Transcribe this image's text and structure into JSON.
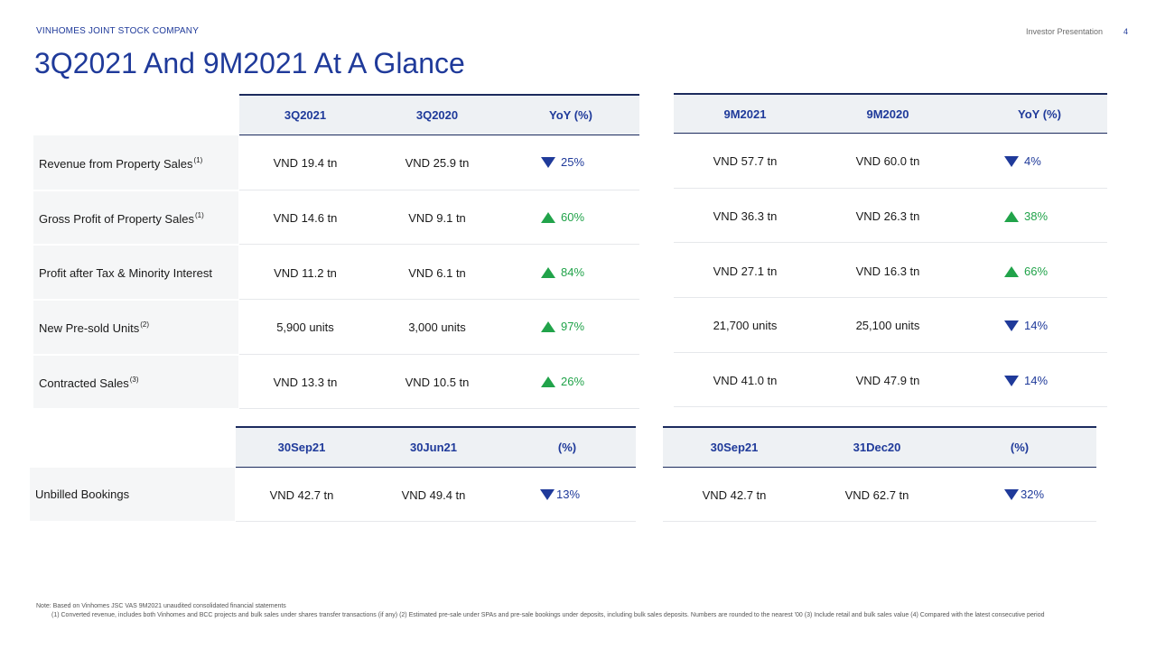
{
  "header": {
    "company": "VINHOMES JOINT STOCK COMPANY",
    "presentation": "Investor Presentation",
    "page_number": "4",
    "title": "3Q2021 And 9M2021 At A Glance"
  },
  "table_quarter": {
    "columns": [
      "3Q2021",
      "3Q2020",
      "YoY (%)"
    ],
    "rows": [
      {
        "label": "Revenue from Property Sales",
        "sup": "(1)",
        "current": "VND 19.4 tn",
        "prior": "VND 25.9 tn",
        "yoy": "25%",
        "direction": "down"
      },
      {
        "label": "Gross Profit of Property Sales",
        "sup": "(1)",
        "current": "VND 14.6 tn",
        "prior": "VND 9.1 tn",
        "yoy": "60%",
        "direction": "up"
      },
      {
        "label": "Profit after Tax & Minority Interest",
        "sup": "",
        "current": "VND 11.2 tn",
        "prior": "VND 6.1 tn",
        "yoy": "84%",
        "direction": "up"
      },
      {
        "label": "New Pre-sold Units",
        "sup": "(2)",
        "current": "5,900 units",
        "prior": "3,000 units",
        "yoy": "97%",
        "direction": "up"
      },
      {
        "label": "Contracted Sales",
        "sup": "(3)",
        "current": "VND 13.3 tn",
        "prior": "VND 10.5 tn",
        "yoy": "26%",
        "direction": "up"
      }
    ]
  },
  "table_9m": {
    "columns": [
      "9M2021",
      "9M2020",
      "YoY (%)"
    ],
    "rows": [
      {
        "current": "VND 57.7 tn",
        "prior": "VND 60.0 tn",
        "yoy": "4%",
        "direction": "down"
      },
      {
        "current": "VND 36.3 tn",
        "prior": "VND 26.3 tn",
        "yoy": "38%",
        "direction": "up"
      },
      {
        "current": "VND 27.1 tn",
        "prior": "VND 16.3 tn",
        "yoy": "66%",
        "direction": "up"
      },
      {
        "current": "21,700 units",
        "prior": "25,100 units",
        "yoy": "14%",
        "direction": "down"
      },
      {
        "current": "VND 41.0 tn",
        "prior": "VND 47.9 tn",
        "yoy": "14%",
        "direction": "down"
      }
    ]
  },
  "bookings_left": {
    "columns": [
      "30Sep21",
      "30Jun21",
      "(%)"
    ],
    "label": "Unbilled Bookings",
    "current": "VND 42.7 tn",
    "prior": "VND 49.4 tn",
    "change": "13%",
    "direction": "down"
  },
  "bookings_right": {
    "columns": [
      "30Sep21",
      "31Dec20",
      "(%)"
    ],
    "current": "VND 42.7 tn",
    "prior": "VND 62.7 tn",
    "change": "32%",
    "direction": "down"
  },
  "notes": {
    "line1": "Note: Based on Vinhomes JSC VAS 9M2021 unaudited consolidated financial statements",
    "line2": "(1) Converted revenue, includes both Vinhomes and BCC projects and bulk sales under shares transfer transactions (if any) (2) Estimated pre-sale under SPAs and pre-sale bookings under deposits, including bulk sales deposits. Numbers are rounded to the nearest '00  (3) Include retail and bulk sales value (4) Compared with the latest consecutive period"
  },
  "colors": {
    "brand_blue": "#1f3a9a",
    "up_green": "#21a34a",
    "header_fill": "#eef1f4",
    "rule_navy": "#1c2b5e"
  }
}
